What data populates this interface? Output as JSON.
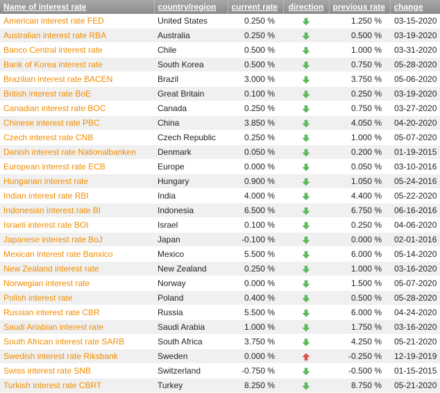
{
  "header": {
    "name": "Name of interest rate",
    "country": "country/region",
    "current": "current rate",
    "direction": "direction",
    "previous": "previous rate",
    "change": "change"
  },
  "colors": {
    "name_link": "#f08c00",
    "arrow_down": "#5cb85c",
    "arrow_up": "#e05050",
    "header_bg": "#9a9a9a"
  },
  "rows": [
    {
      "name": "American interest rate FED",
      "country": "United States",
      "current": "0.250 %",
      "direction": "down",
      "direction_icon": "arrow-down-icon",
      "previous": "1.250 %",
      "change": "03-15-2020"
    },
    {
      "name": "Australian interest rate RBA",
      "country": "Australia",
      "current": "0.250 %",
      "direction": "down",
      "direction_icon": "arrow-down-icon",
      "previous": "0.500 %",
      "change": "03-19-2020"
    },
    {
      "name": "Banco Central interest rate",
      "country": "Chile",
      "current": "0.500 %",
      "direction": "down",
      "direction_icon": "arrow-down-icon",
      "previous": "1.000 %",
      "change": "03-31-2020"
    },
    {
      "name": "Bank of Korea interest rate",
      "country": "South Korea",
      "current": "0.500 %",
      "direction": "down",
      "direction_icon": "arrow-down-icon",
      "previous": "0.750 %",
      "change": "05-28-2020"
    },
    {
      "name": "Brazilian interest rate BACEN",
      "country": "Brazil",
      "current": "3.000 %",
      "direction": "down",
      "direction_icon": "arrow-down-icon",
      "previous": "3.750 %",
      "change": "05-06-2020"
    },
    {
      "name": "British interest rate BoE",
      "country": "Great Britain",
      "current": "0.100 %",
      "direction": "down",
      "direction_icon": "arrow-down-icon",
      "previous": "0.250 %",
      "change": "03-19-2020"
    },
    {
      "name": "Canadian interest rate BOC",
      "country": "Canada",
      "current": "0.250 %",
      "direction": "down",
      "direction_icon": "arrow-down-icon",
      "previous": "0.750 %",
      "change": "03-27-2020"
    },
    {
      "name": "Chinese interest rate PBC",
      "country": "China",
      "current": "3.850 %",
      "direction": "down",
      "direction_icon": "arrow-down-icon",
      "previous": "4.050 %",
      "change": "04-20-2020"
    },
    {
      "name": "Czech interest rate CNB",
      "country": "Czech Republic",
      "current": "0.250 %",
      "direction": "down",
      "direction_icon": "arrow-down-icon",
      "previous": "1.000 %",
      "change": "05-07-2020"
    },
    {
      "name": "Danish interest rate Nationalbanken",
      "country": "Denmark",
      "current": "0.050 %",
      "direction": "down",
      "direction_icon": "arrow-down-icon",
      "previous": "0.200 %",
      "change": "01-19-2015"
    },
    {
      "name": "European interest rate ECB",
      "country": "Europe",
      "current": "0.000 %",
      "direction": "down",
      "direction_icon": "arrow-down-icon",
      "previous": "0.050 %",
      "change": "03-10-2016"
    },
    {
      "name": "Hungarian interest rate",
      "country": "Hungary",
      "current": "0.900 %",
      "direction": "down",
      "direction_icon": "arrow-down-icon",
      "previous": "1.050 %",
      "change": "05-24-2016"
    },
    {
      "name": "Indian interest rate RBI",
      "country": "India",
      "current": "4.000 %",
      "direction": "down",
      "direction_icon": "arrow-down-icon",
      "previous": "4.400 %",
      "change": "05-22-2020"
    },
    {
      "name": "Indonesian interest rate BI",
      "country": "Indonesia",
      "current": "6.500 %",
      "direction": "down",
      "direction_icon": "arrow-down-icon",
      "previous": "6.750 %",
      "change": "06-16-2016"
    },
    {
      "name": "Israeli interest rate BOI",
      "country": "Israel",
      "current": "0.100 %",
      "direction": "down",
      "direction_icon": "arrow-down-icon",
      "previous": "0.250 %",
      "change": "04-06-2020"
    },
    {
      "name": "Japanese interest rate BoJ",
      "country": "Japan",
      "current": "-0.100 %",
      "direction": "down",
      "direction_icon": "arrow-down-icon",
      "previous": "0.000 %",
      "change": "02-01-2016"
    },
    {
      "name": "Mexican interest rate Banxico",
      "country": "Mexico",
      "current": "5.500 %",
      "direction": "down",
      "direction_icon": "arrow-down-icon",
      "previous": "6.000 %",
      "change": "05-14-2020"
    },
    {
      "name": "New Zealand interest rate",
      "country": "New Zealand",
      "current": "0.250 %",
      "direction": "down",
      "direction_icon": "arrow-down-icon",
      "previous": "1.000 %",
      "change": "03-16-2020"
    },
    {
      "name": "Norwegian interest rate",
      "country": "Norway",
      "current": "0.000 %",
      "direction": "down",
      "direction_icon": "arrow-down-icon",
      "previous": "1.500 %",
      "change": "05-07-2020"
    },
    {
      "name": "Polish interest rate",
      "country": "Poland",
      "current": "0.400 %",
      "direction": "down",
      "direction_icon": "arrow-down-icon",
      "previous": "0.500 %",
      "change": "05-28-2020"
    },
    {
      "name": "Russian interest rate CBR",
      "country": "Russia",
      "current": "5.500 %",
      "direction": "down",
      "direction_icon": "arrow-down-icon",
      "previous": "6.000 %",
      "change": "04-24-2020"
    },
    {
      "name": "Saudi Ariabian interest rate",
      "country": "Saudi Arabia",
      "current": "1.000 %",
      "direction": "down",
      "direction_icon": "arrow-down-icon",
      "previous": "1.750 %",
      "change": "03-16-2020"
    },
    {
      "name": "South African interest rate SARB",
      "country": "South Africa",
      "current": "3.750 %",
      "direction": "down",
      "direction_icon": "arrow-down-icon",
      "previous": "4.250 %",
      "change": "05-21-2020"
    },
    {
      "name": "Swedish interest rate Riksbank",
      "country": "Sweden",
      "current": "0.000 %",
      "direction": "up",
      "direction_icon": "arrow-up-icon",
      "previous": "-0.250 %",
      "change": "12-19-2019"
    },
    {
      "name": "Swiss interest rate SNB",
      "country": "Switzerland",
      "current": "-0.750 %",
      "direction": "down",
      "direction_icon": "arrow-down-icon",
      "previous": "-0.500 %",
      "change": "01-15-2015"
    },
    {
      "name": "Turkish interest rate CBRT",
      "country": "Turkey",
      "current": "8.250 %",
      "direction": "down",
      "direction_icon": "arrow-down-icon",
      "previous": "8.750 %",
      "change": "05-21-2020"
    }
  ]
}
